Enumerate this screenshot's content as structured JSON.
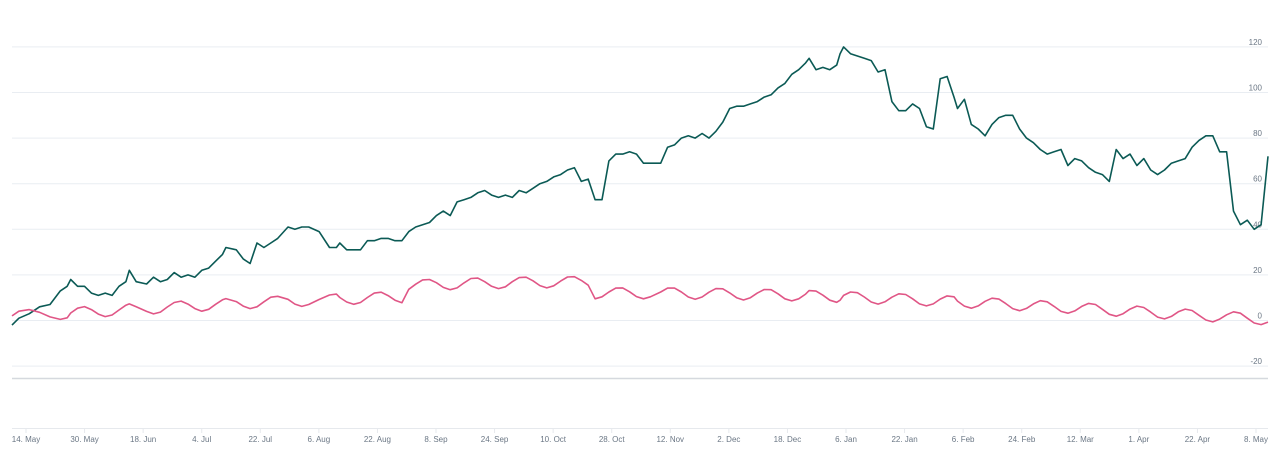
{
  "chart_data": {
    "type": "line",
    "x_start": "2023-05-14",
    "x_end": "2024-05-12",
    "x_tick_labels": [
      "14. May",
      "30. May",
      "18. Jun",
      "4. Jul",
      "22. Jul",
      "6. Aug",
      "22. Aug",
      "8. Sep",
      "24. Sep",
      "10. Oct",
      "28. Oct",
      "12. Nov",
      "2. Dec",
      "18. Dec",
      "6. Jan",
      "22. Jan",
      "6. Feb",
      "24. Feb",
      "12. Mar",
      "1. Apr",
      "22. Apr",
      "8. May"
    ],
    "y_tick_labels": [
      "120",
      "100",
      "80",
      "60",
      "40",
      "20",
      "0",
      "-20"
    ],
    "ylim": [
      -25,
      125
    ],
    "grid": true,
    "legend": "none",
    "series": [
      {
        "color": "#0b5a55",
        "points": [
          [
            "2023-05-14",
            -2
          ],
          [
            "2023-05-16",
            1
          ],
          [
            "2023-05-19",
            3
          ],
          [
            "2023-05-22",
            6
          ],
          [
            "2023-05-25",
            7
          ],
          [
            "2023-05-28",
            13
          ],
          [
            "2023-05-30",
            15
          ],
          [
            "2023-05-31",
            18
          ],
          [
            "2023-06-02",
            15
          ],
          [
            "2023-06-04",
            15
          ],
          [
            "2023-06-06",
            12
          ],
          [
            "2023-06-08",
            11
          ],
          [
            "2023-06-10",
            12
          ],
          [
            "2023-06-12",
            11
          ],
          [
            "2023-06-14",
            15
          ],
          [
            "2023-06-16",
            17
          ],
          [
            "2023-06-17",
            22
          ],
          [
            "2023-06-19",
            17
          ],
          [
            "2023-06-22",
            16
          ],
          [
            "2023-06-24",
            19
          ],
          [
            "2023-06-26",
            17
          ],
          [
            "2023-06-28",
            18
          ],
          [
            "2023-06-30",
            21
          ],
          [
            "2023-07-02",
            19
          ],
          [
            "2023-07-04",
            20
          ],
          [
            "2023-07-06",
            19
          ],
          [
            "2023-07-08",
            22
          ],
          [
            "2023-07-10",
            23
          ],
          [
            "2023-07-12",
            26
          ],
          [
            "2023-07-14",
            29
          ],
          [
            "2023-07-15",
            32
          ],
          [
            "2023-07-18",
            31
          ],
          [
            "2023-07-20",
            27
          ],
          [
            "2023-07-22",
            25
          ],
          [
            "2023-07-24",
            34
          ],
          [
            "2023-07-26",
            32
          ],
          [
            "2023-07-28",
            34
          ],
          [
            "2023-07-30",
            36
          ],
          [
            "2023-08-02",
            41
          ],
          [
            "2023-08-04",
            40
          ],
          [
            "2023-08-06",
            41
          ],
          [
            "2023-08-08",
            41
          ],
          [
            "2023-08-11",
            39
          ],
          [
            "2023-08-14",
            32
          ],
          [
            "2023-08-16",
            32
          ],
          [
            "2023-08-17",
            34
          ],
          [
            "2023-08-19",
            31
          ],
          [
            "2023-08-21",
            31
          ],
          [
            "2023-08-23",
            31
          ],
          [
            "2023-08-25",
            35
          ],
          [
            "2023-08-27",
            35
          ],
          [
            "2023-08-29",
            36
          ],
          [
            "2023-08-31",
            36
          ],
          [
            "2023-09-02",
            35
          ],
          [
            "2023-09-04",
            35
          ],
          [
            "2023-09-06",
            39
          ],
          [
            "2023-09-08",
            41
          ],
          [
            "2023-09-10",
            42
          ],
          [
            "2023-09-12",
            43
          ],
          [
            "2023-09-14",
            46
          ],
          [
            "2023-09-16",
            48
          ],
          [
            "2023-09-18",
            46
          ],
          [
            "2023-09-20",
            52
          ],
          [
            "2023-09-22",
            53
          ],
          [
            "2023-09-24",
            54
          ],
          [
            "2023-09-26",
            56
          ],
          [
            "2023-09-28",
            57
          ],
          [
            "2023-09-30",
            55
          ],
          [
            "2023-10-02",
            54
          ],
          [
            "2023-10-04",
            55
          ],
          [
            "2023-10-06",
            54
          ],
          [
            "2023-10-08",
            57
          ],
          [
            "2023-10-10",
            56
          ],
          [
            "2023-10-12",
            58
          ],
          [
            "2023-10-14",
            60
          ],
          [
            "2023-10-16",
            61
          ],
          [
            "2023-10-18",
            63
          ],
          [
            "2023-10-20",
            64
          ],
          [
            "2023-10-22",
            66
          ],
          [
            "2023-10-24",
            67
          ],
          [
            "2023-10-26",
            61
          ],
          [
            "2023-10-28",
            62
          ],
          [
            "2023-10-30",
            53
          ],
          [
            "2023-11-01",
            53
          ],
          [
            "2023-11-03",
            70
          ],
          [
            "2023-11-05",
            73
          ],
          [
            "2023-11-07",
            73
          ],
          [
            "2023-11-09",
            74
          ],
          [
            "2023-11-11",
            73
          ],
          [
            "2023-11-13",
            69
          ],
          [
            "2023-11-15",
            69
          ],
          [
            "2023-11-18",
            69
          ],
          [
            "2023-11-20",
            76
          ],
          [
            "2023-11-22",
            77
          ],
          [
            "2023-11-24",
            80
          ],
          [
            "2023-11-26",
            81
          ],
          [
            "2023-11-28",
            80
          ],
          [
            "2023-11-30",
            82
          ],
          [
            "2023-12-02",
            80
          ],
          [
            "2023-12-04",
            83
          ],
          [
            "2023-12-06",
            87
          ],
          [
            "2023-12-08",
            93
          ],
          [
            "2023-12-10",
            94
          ],
          [
            "2023-12-12",
            94
          ],
          [
            "2023-12-14",
            95
          ],
          [
            "2023-12-16",
            96
          ],
          [
            "2023-12-18",
            98
          ],
          [
            "2023-12-20",
            99
          ],
          [
            "2023-12-22",
            102
          ],
          [
            "2023-12-24",
            104
          ],
          [
            "2023-12-26",
            108
          ],
          [
            "2023-12-28",
            110
          ],
          [
            "2023-12-30",
            113
          ],
          [
            "2023-12-31",
            115
          ],
          [
            "2024-01-02",
            110
          ],
          [
            "2024-01-04",
            111
          ],
          [
            "2024-01-06",
            110
          ],
          [
            "2024-01-08",
            112
          ],
          [
            "2024-01-09",
            117
          ],
          [
            "2024-01-10",
            120
          ],
          [
            "2024-01-12",
            117
          ],
          [
            "2024-01-14",
            116
          ],
          [
            "2024-01-16",
            115
          ],
          [
            "2024-01-18",
            114
          ],
          [
            "2024-01-20",
            109
          ],
          [
            "2024-01-22",
            110
          ],
          [
            "2024-01-24",
            96
          ],
          [
            "2024-01-26",
            92
          ],
          [
            "2024-01-28",
            92
          ],
          [
            "2024-01-30",
            95
          ],
          [
            "2024-02-01",
            93
          ],
          [
            "2024-02-03",
            85
          ],
          [
            "2024-02-05",
            84
          ],
          [
            "2024-02-07",
            106
          ],
          [
            "2024-02-09",
            107
          ],
          [
            "2024-02-11",
            98
          ],
          [
            "2024-02-12",
            93
          ],
          [
            "2024-02-14",
            97
          ],
          [
            "2024-02-16",
            86
          ],
          [
            "2024-02-18",
            84
          ],
          [
            "2024-02-20",
            81
          ],
          [
            "2024-02-22",
            86
          ],
          [
            "2024-02-24",
            89
          ],
          [
            "2024-02-26",
            90
          ],
          [
            "2024-02-28",
            90
          ],
          [
            "2024-03-01",
            84
          ],
          [
            "2024-03-03",
            80
          ],
          [
            "2024-03-05",
            78
          ],
          [
            "2024-03-07",
            75
          ],
          [
            "2024-03-09",
            73
          ],
          [
            "2024-03-11",
            74
          ],
          [
            "2024-03-13",
            75
          ],
          [
            "2024-03-15",
            68
          ],
          [
            "2024-03-17",
            71
          ],
          [
            "2024-03-19",
            70
          ],
          [
            "2024-03-21",
            67
          ],
          [
            "2024-03-23",
            65
          ],
          [
            "2024-03-25",
            64
          ],
          [
            "2024-03-27",
            61
          ],
          [
            "2024-03-29",
            75
          ],
          [
            "2024-03-31",
            71
          ],
          [
            "2024-04-02",
            73
          ],
          [
            "2024-04-04",
            68
          ],
          [
            "2024-04-06",
            71
          ],
          [
            "2024-04-08",
            66
          ],
          [
            "2024-04-10",
            64
          ],
          [
            "2024-04-12",
            66
          ],
          [
            "2024-04-14",
            69
          ],
          [
            "2024-04-16",
            70
          ],
          [
            "2024-04-18",
            71
          ],
          [
            "2024-04-20",
            76
          ],
          [
            "2024-04-22",
            79
          ],
          [
            "2024-04-24",
            81
          ],
          [
            "2024-04-26",
            81
          ],
          [
            "2024-04-28",
            74
          ],
          [
            "2024-04-30",
            74
          ],
          [
            "2024-05-02",
            48
          ],
          [
            "2024-05-04",
            42
          ],
          [
            "2024-05-06",
            44
          ],
          [
            "2024-05-08",
            40
          ],
          [
            "2024-05-10",
            42
          ],
          [
            "2024-05-12",
            72
          ]
        ]
      },
      {
        "color": "#e05686",
        "values": []
      }
    ]
  }
}
